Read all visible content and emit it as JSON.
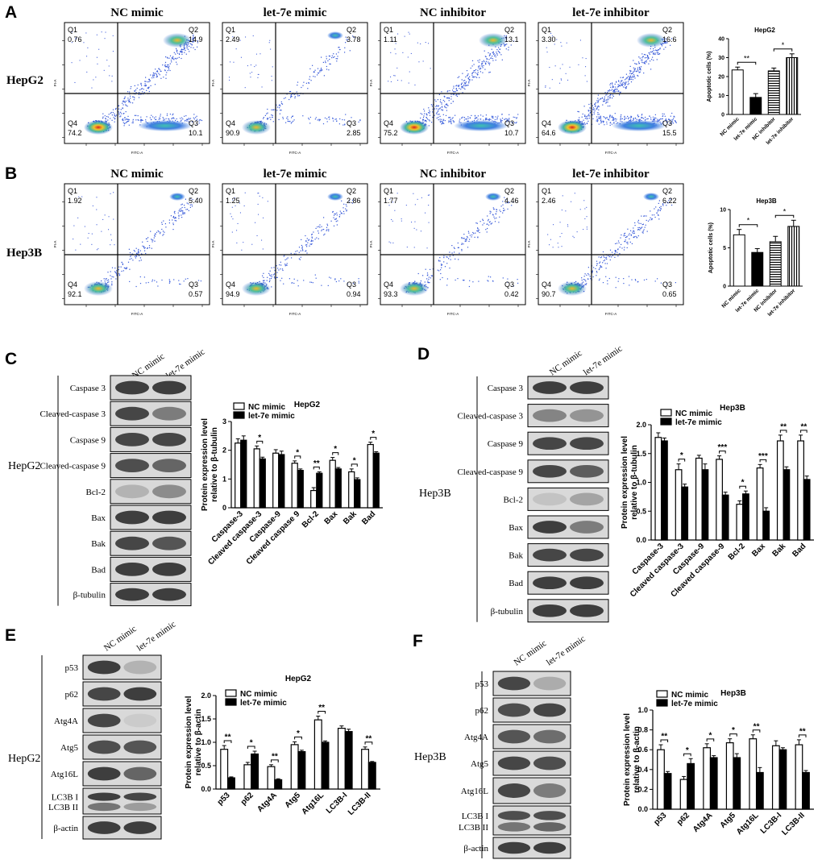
{
  "panels": {
    "A": {
      "letter": "A",
      "row_label": "HepG2",
      "columns": [
        "NC mimic",
        "let-7e mimic",
        "NC inhibitor",
        "let-7e inhibitor"
      ],
      "flow": [
        {
          "q1": "0.76",
          "q2": "14.9",
          "q3": "10.1",
          "q4": "74.2",
          "density": "mid",
          "q2mass": 0.55
        },
        {
          "q1": "2.49",
          "q2": "3.78",
          "q3": "2.85",
          "q4": "90.9",
          "density": "low",
          "q2mass": 0.2
        },
        {
          "q1": "1.11",
          "q2": "13.1",
          "q3": "10.7",
          "q4": "75.2",
          "density": "mid",
          "q2mass": 0.6
        },
        {
          "q1": "3.30",
          "q2": "16.6",
          "q3": "15.5",
          "q4": "64.6",
          "density": "high",
          "q2mass": 0.7
        }
      ],
      "quadrant_labels": [
        "Q1",
        "Q2",
        "Q3",
        "Q4"
      ],
      "axis_labels": {
        "x": "FITC-A",
        "y": "PI-A"
      }
    },
    "B": {
      "letter": "B",
      "row_label": "Hep3B",
      "columns": [
        "NC mimic",
        "let-7e mimic",
        "NC inhibitor",
        "let-7e inhibitor"
      ],
      "flow": [
        {
          "q1": "1.92",
          "q2": "5.40",
          "q3": "0.57",
          "q4": "92.1",
          "density": "low",
          "q2mass": 0.3
        },
        {
          "q1": "1.25",
          "q2": "2.86",
          "q3": "0.94",
          "q4": "94.9",
          "density": "low",
          "q2mass": 0.25
        },
        {
          "q1": "1.77",
          "q2": "4.46",
          "q3": "0.42",
          "q4": "93.3",
          "density": "low",
          "q2mass": 0.25
        },
        {
          "q1": "2.46",
          "q2": "6.22",
          "q3": "0.65",
          "q4": "90.7",
          "density": "low",
          "q2mass": 0.35
        }
      ]
    },
    "C": {
      "letter": "C",
      "cell_label": "HepG2",
      "lanes": [
        "NC mimic",
        "let-7e mimic"
      ],
      "bands": [
        "Caspase 3",
        "Cleaved-caspase 3",
        "Caspase 9",
        "Cleaved-caspase 9",
        "Bcl-2",
        "Bax",
        "Bak",
        "Bad",
        "β-tubulin"
      ]
    },
    "D": {
      "letter": "D",
      "cell_label": "Hep3B",
      "lanes": [
        "NC mimic",
        "let-7e mimic"
      ],
      "bands": [
        "Caspase 3",
        "Cleaved-caspase 3",
        "Caspase 9",
        "Cleaved-caspase 9",
        "Bcl-2",
        "Bax",
        "Bak",
        "Bad",
        "β-tubulin"
      ]
    },
    "E": {
      "letter": "E",
      "cell_label": "HepG2",
      "lanes": [
        "NC mimic",
        "let-7e mimic"
      ],
      "bands": [
        "p53",
        "p62",
        "Atg4A",
        "Atg5",
        "Atg16L",
        "LC3B I",
        "LC3B II",
        "β-actin"
      ]
    },
    "F": {
      "letter": "F",
      "cell_label": "Hep3B",
      "lanes": [
        "NC mimic",
        "let-7e mimic"
      ],
      "bands": [
        "p53",
        "p62",
        "Atg4A",
        "Atg5",
        "Atg16L",
        "LC3B I",
        "LC3B II",
        "β-actin"
      ]
    }
  },
  "chart_data": [
    {
      "id": "A-bar",
      "type": "bar",
      "title": "HepG2",
      "ylabel": "Apoptotic cells (%)",
      "ylim": [
        0,
        40
      ],
      "yticks": [
        "0",
        "10",
        "20",
        "30",
        "40"
      ],
      "categories": [
        "NC mimic",
        "let-7e mimic",
        "NC inhibitor",
        "let-7e inhibitor"
      ],
      "values": [
        23.5,
        9,
        23,
        30
      ],
      "errors": [
        1.5,
        2,
        1.5,
        2
      ],
      "styles": [
        "white",
        "black",
        "hstripe",
        "vstripe"
      ],
      "sig": [
        {
          "from": 0,
          "to": 1,
          "label": "**"
        },
        {
          "from": 2,
          "to": 3,
          "label": "*"
        }
      ]
    },
    {
      "id": "B-bar",
      "type": "bar",
      "title": "Hep3B",
      "ylabel": "Apoptotic cells (%)",
      "ylim": [
        0,
        10
      ],
      "yticks": [
        "0",
        "5",
        "10"
      ],
      "categories": [
        "NC mimic",
        "let-7e mimic",
        "NC inhibitor",
        "let-7e inhibitor"
      ],
      "values": [
        6.7,
        4.4,
        5.8,
        7.8
      ],
      "errors": [
        0.7,
        0.5,
        0.7,
        0.8
      ],
      "styles": [
        "white",
        "black",
        "hstripe",
        "vstripe"
      ],
      "sig": [
        {
          "from": 0,
          "to": 1,
          "label": "*"
        },
        {
          "from": 2,
          "to": 3,
          "label": "*"
        }
      ]
    },
    {
      "id": "C-bar",
      "type": "bar",
      "title": "HepG2",
      "ylabel": "Protein expression level relative to β-tubulin",
      "ylim": [
        0,
        3
      ],
      "yticks": [
        "0",
        "1",
        "2",
        "3"
      ],
      "legend": [
        "NC mimic",
        "let-7e mimic"
      ],
      "categories": [
        "Caspase-3",
        "Cleaved caspase-3",
        "Caspase-9",
        "Cleaved caspase 9",
        "Bcl-2",
        "Bax",
        "Bak",
        "Bad"
      ],
      "series": [
        {
          "name": "NC mimic",
          "values": [
            2.25,
            2.05,
            1.9,
            1.55,
            0.6,
            1.65,
            1.25,
            2.2
          ],
          "errors": [
            0.15,
            0.1,
            0.12,
            0.08,
            0.1,
            0.1,
            0.1,
            0.08
          ]
        },
        {
          "name": "let-7e mimic",
          "values": [
            2.35,
            1.7,
            1.85,
            1.3,
            1.2,
            1.35,
            0.98,
            1.9
          ],
          "errors": [
            0.15,
            0.06,
            0.12,
            0.05,
            0.05,
            0.05,
            0.06,
            0.05
          ]
        }
      ],
      "sig": [
        "",
        "*",
        "",
        "*",
        "**",
        "*",
        "*",
        "*"
      ]
    },
    {
      "id": "D-bar",
      "type": "bar",
      "title": "Hep3B",
      "ylabel": "Protein expression level relative to β-tubulin",
      "ylim": [
        0,
        2.0
      ],
      "yticks": [
        "0.0",
        "0.5",
        "1.0",
        "1.5",
        "2.0"
      ],
      "legend": [
        "NC mimic",
        "let-7e mimic"
      ],
      "categories": [
        "Caspase-3",
        "Cleaved caspase-3",
        "Caspase-9",
        "Cleaved caspase-9",
        "Bcl-2",
        "Bax",
        "Bak",
        "Bad"
      ],
      "series": [
        {
          "name": "NC mimic",
          "values": [
            1.78,
            1.22,
            1.42,
            1.4,
            0.62,
            1.25,
            1.72,
            1.72
          ],
          "errors": [
            0.08,
            0.1,
            0.05,
            0.06,
            0.06,
            0.06,
            0.1,
            0.1
          ]
        },
        {
          "name": "let-7e mimic",
          "values": [
            1.72,
            0.92,
            1.22,
            0.78,
            0.8,
            0.5,
            1.22,
            1.05
          ],
          "errors": [
            0.05,
            0.05,
            0.1,
            0.05,
            0.05,
            0.06,
            0.05,
            0.06
          ]
        }
      ],
      "sig": [
        "",
        "*",
        "",
        "***",
        "*",
        "***",
        "**",
        "**"
      ]
    },
    {
      "id": "E-bar",
      "type": "bar",
      "title": "HepG2",
      "ylabel": "Protein expression level relative to β-actin",
      "ylim": [
        0,
        2.0
      ],
      "yticks": [
        "0.0",
        "0.5",
        "1.0",
        "1.5",
        "2.0"
      ],
      "legend": [
        "NC mimic",
        "let-7e mimic"
      ],
      "categories": [
        "p53",
        "p62",
        "Atg4A",
        "Atg5",
        "Atg16L",
        "LC3B-I",
        "LC3B-II"
      ],
      "series": [
        {
          "name": "NC mimic",
          "values": [
            0.85,
            0.52,
            0.48,
            0.95,
            1.48,
            1.3,
            0.85
          ],
          "errors": [
            0.08,
            0.05,
            0.04,
            0.06,
            0.08,
            0.05,
            0.05
          ]
        },
        {
          "name": "let-7e mimic",
          "values": [
            0.24,
            0.75,
            0.2,
            0.8,
            1.0,
            1.23,
            0.57
          ],
          "errors": [
            0.02,
            0.06,
            0.02,
            0.03,
            0.03,
            0.05,
            0.02
          ]
        }
      ],
      "sig": [
        "**",
        "*",
        "**",
        "*",
        "**",
        "",
        "**"
      ]
    },
    {
      "id": "F-bar",
      "type": "bar",
      "title": "Hep3B",
      "ylabel": "Protein expression level relative to β-actin",
      "ylim": [
        0,
        1.0
      ],
      "yticks": [
        "0.0",
        "0.2",
        "0.4",
        "0.6",
        "0.8",
        "1.0"
      ],
      "legend": [
        "NC mimic",
        "let-7e mimic"
      ],
      "categories": [
        "p53",
        "p62",
        "Atg4A",
        "Atg5",
        "Atg16L",
        "LC3B-I",
        "LC3B-II"
      ],
      "series": [
        {
          "name": "NC mimic",
          "values": [
            0.6,
            0.3,
            0.62,
            0.67,
            0.71,
            0.64,
            0.65
          ],
          "errors": [
            0.05,
            0.03,
            0.04,
            0.04,
            0.04,
            0.05,
            0.05
          ]
        },
        {
          "name": "let-7e mimic",
          "values": [
            0.36,
            0.46,
            0.52,
            0.52,
            0.37,
            0.6,
            0.37
          ],
          "errors": [
            0.02,
            0.05,
            0.02,
            0.04,
            0.05,
            0.02,
            0.02
          ]
        }
      ],
      "sig": [
        "**",
        "*",
        "*",
        "*",
        "**",
        "",
        "**"
      ]
    }
  ]
}
